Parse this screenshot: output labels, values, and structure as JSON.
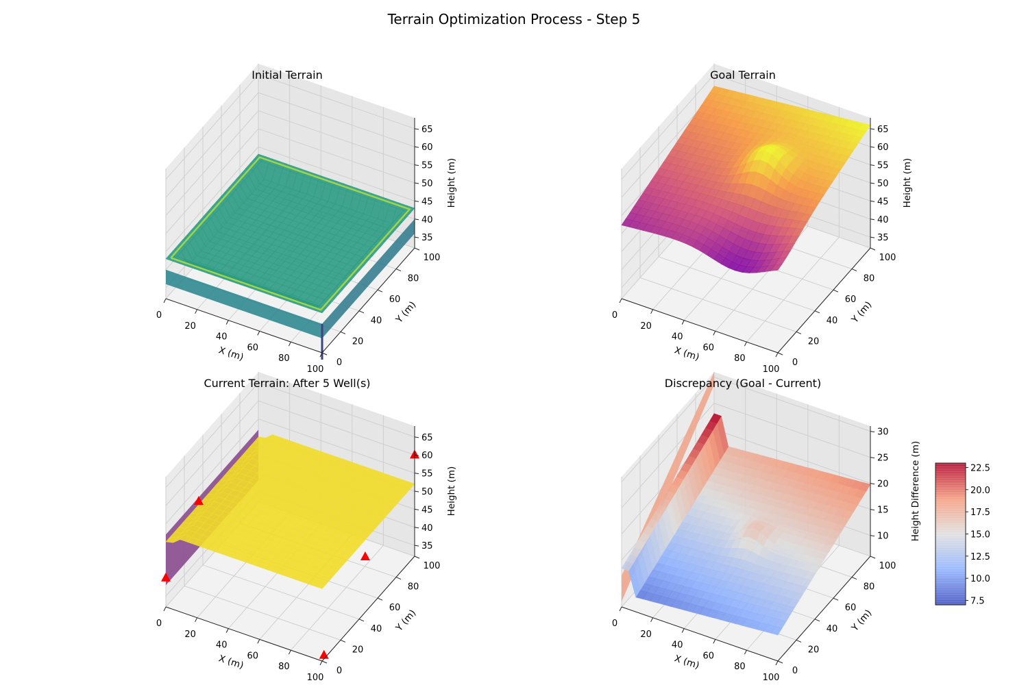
{
  "figure": {
    "title": "Terrain Optimization Process - Step 5"
  },
  "chart_data": [
    {
      "type": "surface3d",
      "title": "Initial Terrain",
      "xlabel": "X (m)",
      "ylabel": "Y (m)",
      "zlabel": "Height (m)",
      "x_ticks": [
        0,
        20,
        40,
        60,
        80,
        100
      ],
      "y_ticks": [
        0,
        20,
        40,
        60,
        80,
        100
      ],
      "z_ticks": [
        35,
        40,
        45,
        50,
        55,
        60,
        65
      ],
      "xlim": [
        0,
        100
      ],
      "ylim": [
        0,
        100
      ],
      "zlim": [
        32,
        68
      ],
      "colormap": "viridis",
      "surface": {
        "base_height": 40,
        "rim_height": 43,
        "spike_min": 32,
        "spike_max": 52
      }
    },
    {
      "type": "surface3d",
      "title": "Goal Terrain",
      "xlabel": "X (m)",
      "ylabel": "Y (m)",
      "zlabel": "Height (m)",
      "x_ticks": [
        0,
        20,
        40,
        60,
        80,
        100
      ],
      "y_ticks": [
        0,
        20,
        40,
        60,
        80,
        100
      ],
      "z_ticks": [
        35,
        40,
        45,
        50,
        55,
        60,
        65
      ],
      "xlim": [
        0,
        100
      ],
      "ylim": [
        0,
        100
      ],
      "zlim": [
        32,
        68
      ],
      "colormap": "plasma",
      "surface": {
        "min_height": 45,
        "max_height": 66,
        "peak": [
          60,
          55
        ]
      }
    },
    {
      "type": "surface3d",
      "title": "Current Terrain: After 5 Well(s)",
      "xlabel": "X (m)",
      "ylabel": "Y (m)",
      "zlabel": "Height (m)",
      "x_ticks": [
        0,
        20,
        40,
        60,
        80,
        100
      ],
      "y_ticks": [
        0,
        20,
        40,
        60,
        80,
        100
      ],
      "z_ticks": [
        35,
        40,
        45,
        50,
        55,
        60,
        65
      ],
      "xlim": [
        0,
        100
      ],
      "ylim": [
        0,
        100
      ],
      "zlim": [
        32,
        68
      ],
      "colormap": "plasma",
      "surface": {
        "base_height": 52,
        "wall_x": 0,
        "wall_bottom": 38
      },
      "wells": [
        {
          "x": 8,
          "y": 22,
          "z": 56
        },
        {
          "x": 100,
          "y": 2,
          "z": 33
        },
        {
          "x": 98,
          "y": 50,
          "z": 46
        },
        {
          "x": 100,
          "y": 100,
          "z": 60
        },
        {
          "x": 0,
          "y": 0,
          "z": 40
        }
      ],
      "well_color": "#ff0000"
    },
    {
      "type": "surface3d",
      "title": "Discrepancy (Goal - Current)",
      "xlabel": "X (m)",
      "ylabel": "Y (m)",
      "zlabel": "Height Difference (m)",
      "x_ticks": [
        0,
        20,
        40,
        60,
        80,
        100
      ],
      "y_ticks": [
        0,
        20,
        40,
        60,
        80,
        100
      ],
      "z_ticks": [
        10,
        15,
        20,
        25,
        30
      ],
      "xlim": [
        0,
        100
      ],
      "ylim": [
        0,
        100
      ],
      "zlim": [
        6,
        31
      ],
      "colormap": "coolwarm",
      "colorbar": {
        "ticks": [
          "7.5",
          "10.0",
          "12.5",
          "15.0",
          "17.5",
          "20.0",
          "22.5"
        ],
        "min": 7,
        "max": 23
      },
      "surface": {
        "min_diff": 7,
        "max_diff": 23,
        "wall_top": 31
      }
    }
  ]
}
